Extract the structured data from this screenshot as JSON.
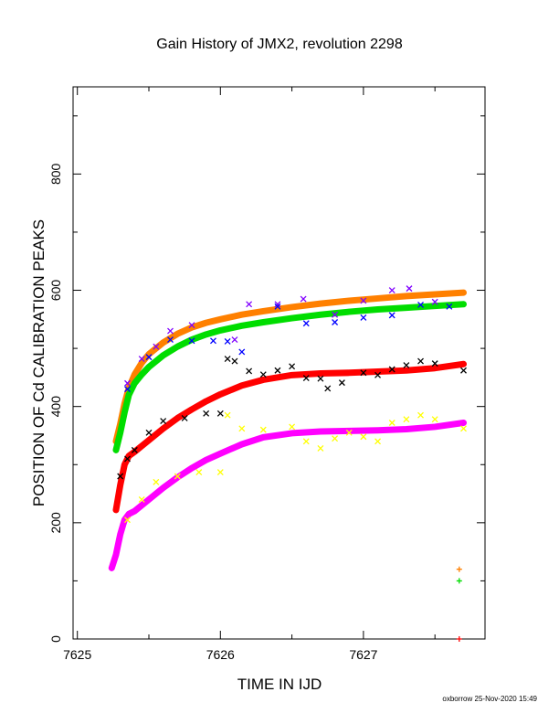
{
  "chart_data": {
    "type": "scatter",
    "title": "Gain History of JMX2, revolution 2298",
    "xlabel": "TIME IN IJD",
    "ylabel": "POSITION OF Cd CALIBRATION PEAKS",
    "xlim": [
      7624.97,
      7627.85
    ],
    "ylim": [
      0,
      950
    ],
    "xticks": [
      7625,
      7626,
      7627
    ],
    "xtick_labels": [
      "7625",
      "7626",
      "7627"
    ],
    "yticks": [
      0,
      200,
      400,
      600,
      800
    ],
    "ytick_labels": [
      "0",
      "200",
      "400",
      "600",
      "800"
    ],
    "grid": false,
    "legend": "none",
    "footer": "oxborrow 25-Nov-2020 15:49",
    "series": [
      {
        "color": "#ff8000",
        "marker": "+",
        "x": [
          7625.27,
          7625.3,
          7625.33,
          7625.36,
          7625.4,
          7625.45,
          7625.5,
          7625.6,
          7625.7,
          7625.8,
          7625.9,
          7626.0,
          7626.15,
          7626.3,
          7626.5,
          7626.7,
          7626.9,
          7627.1,
          7627.3,
          7627.5,
          7627.7
        ],
        "values": [
          340,
          370,
          405,
          432,
          455,
          475,
          490,
          510,
          525,
          536,
          544,
          550,
          558,
          564,
          571,
          577,
          582,
          586,
          590,
          593,
          596
        ]
      },
      {
        "color": "#00dd00",
        "marker": "+",
        "x": [
          7625.27,
          7625.3,
          7625.33,
          7625.36,
          7625.4,
          7625.45,
          7625.5,
          7625.6,
          7625.7,
          7625.8,
          7625.9,
          7626.0,
          7626.15,
          7626.3,
          7626.5,
          7626.7,
          7626.9,
          7627.1,
          7627.3,
          7627.5,
          7627.7
        ],
        "values": [
          325,
          355,
          390,
          420,
          440,
          455,
          468,
          488,
          503,
          515,
          524,
          531,
          539,
          545,
          552,
          558,
          563,
          567,
          570,
          573,
          576
        ]
      },
      {
        "color": "#ff0000",
        "marker": "+",
        "x": [
          7625.27,
          7625.3,
          7625.33,
          7625.36,
          7625.4,
          7625.5,
          7625.6,
          7625.7,
          7625.8,
          7625.9,
          7626.0,
          7626.15,
          7626.3,
          7626.5,
          7626.7,
          7626.9,
          7627.1,
          7627.3,
          7627.5,
          7627.7
        ],
        "values": [
          222,
          265,
          300,
          315,
          322,
          342,
          362,
          380,
          395,
          409,
          421,
          436,
          446,
          454,
          457,
          458,
          460,
          462,
          466,
          473
        ]
      },
      {
        "color": "#ff00ff",
        "marker": "+",
        "x": [
          7625.24,
          7625.27,
          7625.3,
          7625.33,
          7625.36,
          7625.4,
          7625.5,
          7625.6,
          7625.7,
          7625.8,
          7625.9,
          7626.0,
          7626.15,
          7626.3,
          7626.5,
          7626.7,
          7626.9,
          7627.1,
          7627.3,
          7627.5,
          7627.7
        ],
        "values": [
          122,
          145,
          180,
          205,
          215,
          220,
          240,
          260,
          278,
          294,
          308,
          319,
          335,
          347,
          354,
          357,
          358,
          359,
          361,
          365,
          372
        ]
      },
      {
        "color": "#8000ff",
        "marker": "x",
        "x": [
          7625.35,
          7625.45,
          7625.55,
          7625.65,
          7625.8,
          7626.1,
          7626.2,
          7626.4,
          7626.58,
          7626.8,
          7627.0,
          7627.2,
          7627.32,
          7627.5
        ],
        "values": [
          440,
          482,
          503,
          530,
          540,
          515,
          576,
          576,
          585,
          558,
          582,
          600,
          603,
          580
        ]
      },
      {
        "color": "#0000ff",
        "marker": "x",
        "x": [
          7625.35,
          7625.5,
          7625.65,
          7625.8,
          7625.95,
          7626.05,
          7626.15,
          7626.4,
          7626.6,
          7626.8,
          7627.0,
          7627.2,
          7627.4,
          7627.6
        ],
        "values": [
          430,
          485,
          515,
          513,
          513,
          512,
          494,
          572,
          543,
          545,
          553,
          557,
          575,
          572
        ]
      },
      {
        "color": "#000000",
        "marker": "x",
        "x": [
          7625.3,
          7625.35,
          7625.4,
          7625.5,
          7625.6,
          7625.75,
          7625.9,
          7626.0,
          7626.05,
          7626.1,
          7626.2,
          7626.3,
          7626.4,
          7626.5,
          7626.6,
          7626.7,
          7626.75,
          7626.85,
          7627.0,
          7627.1,
          7627.2,
          7627.3,
          7627.4,
          7627.5,
          7627.7
        ],
        "values": [
          280,
          310,
          325,
          355,
          375,
          380,
          388,
          388,
          482,
          478,
          461,
          455,
          462,
          469,
          449,
          448,
          431,
          441,
          458,
          454,
          464,
          471,
          478,
          474,
          462
        ]
      },
      {
        "color": "#ffff00",
        "marker": "x",
        "x": [
          7625.35,
          7625.45,
          7625.55,
          7625.7,
          7625.85,
          7626.0,
          7626.05,
          7626.15,
          7626.3,
          7626.5,
          7626.6,
          7626.7,
          7626.8,
          7626.9,
          7627.0,
          7627.1,
          7627.2,
          7627.3,
          7627.4,
          7627.5,
          7627.7
        ],
        "values": [
          205,
          240,
          270,
          280,
          287,
          287,
          385,
          362,
          360,
          365,
          340,
          328,
          345,
          355,
          348,
          340,
          372,
          378,
          385,
          378,
          362
        ]
      }
    ],
    "annotations": [
      {
        "marker": "+",
        "color": "#ff8000",
        "x": 7627.67,
        "y": 120
      },
      {
        "marker": "+",
        "color": "#00dd00",
        "x": 7627.67,
        "y": 100
      },
      {
        "marker": "+",
        "color": "#ff0000",
        "x": 7627.67,
        "y": 0
      }
    ]
  }
}
